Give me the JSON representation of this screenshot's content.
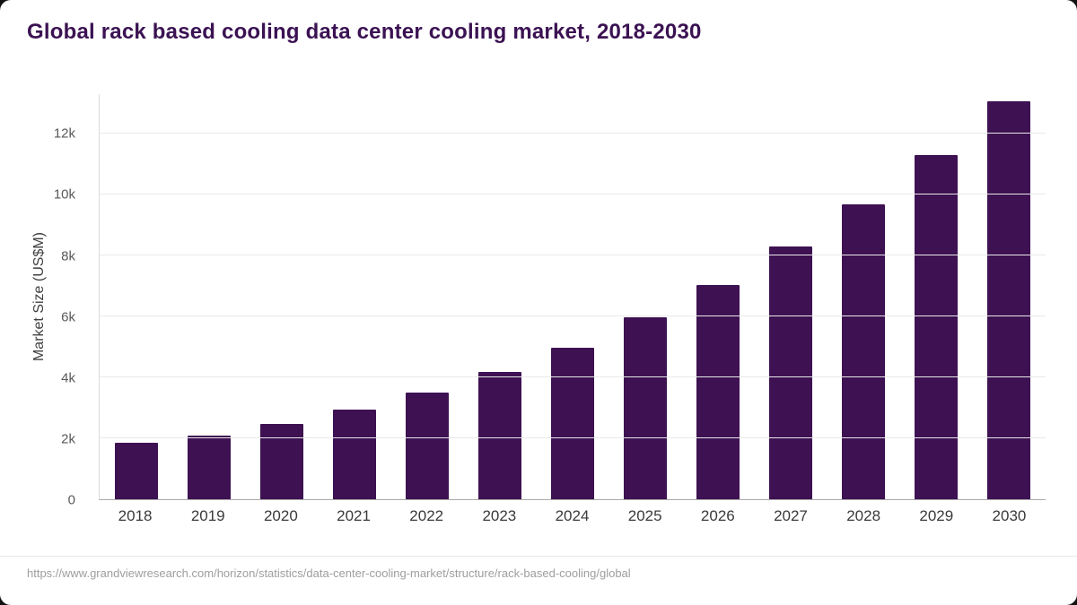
{
  "title": "Global rack based cooling data center cooling market, 2018-2030",
  "source": "https://www.grandviewresearch.com/horizon/statistics/data-center-cooling-market/structure/rack-based-cooling/global",
  "colors": {
    "bar": "#3d1152",
    "title": "#3b1253",
    "grid": "#e9e9e9",
    "axis": "#a9a9a9",
    "tick": "#595959",
    "source": "#9e9e9e"
  },
  "chart_data": {
    "type": "bar",
    "title": "Global rack based cooling data center cooling market, 2018-2030",
    "xlabel": "",
    "ylabel": "Market Size (US$M)",
    "categories": [
      "2018",
      "2019",
      "2020",
      "2021",
      "2022",
      "2023",
      "2024",
      "2025",
      "2026",
      "2027",
      "2028",
      "2029",
      "2030"
    ],
    "values": [
      1850,
      2100,
      2470,
      2930,
      3490,
      4170,
      4980,
      5960,
      7030,
      8290,
      9690,
      11310,
      13060
    ],
    "ylim": [
      0,
      13300
    ],
    "yticks": [
      {
        "value": 0,
        "label": "0"
      },
      {
        "value": 2000,
        "label": "2k"
      },
      {
        "value": 4000,
        "label": "4k"
      },
      {
        "value": 6000,
        "label": "6k"
      },
      {
        "value": 8000,
        "label": "8k"
      },
      {
        "value": 10000,
        "label": "10k"
      },
      {
        "value": 12000,
        "label": "12k"
      }
    ],
    "grid": true,
    "legend": "none"
  }
}
